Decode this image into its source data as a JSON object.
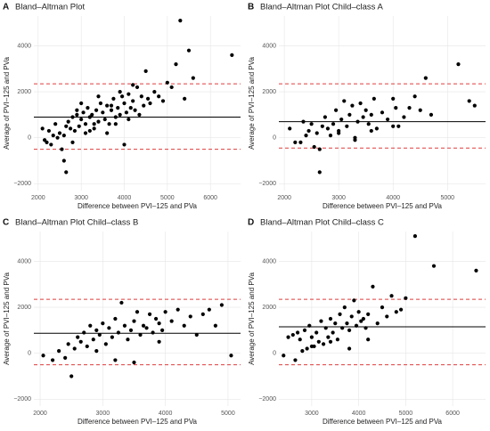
{
  "chart_data": [
    {
      "type": "scatter",
      "panel": "A",
      "title": "Bland–Altman Plot",
      "x_label": "Difference between PVI–125 and PVa",
      "y_label": "Average of PVI–125 and PVa",
      "color": "#000000",
      "x": [
        2100,
        2150,
        2200,
        2250,
        2300,
        2350,
        2400,
        2450,
        2500,
        2550,
        2600,
        2650,
        2700,
        2750,
        2800,
        2850,
        2900,
        2950,
        3000,
        3050,
        3100,
        3150,
        3200,
        3250,
        3300,
        3350,
        3400,
        3450,
        3500,
        3550,
        3600,
        3650,
        3700,
        3750,
        3800,
        3850,
        3900,
        3950,
        4000,
        4050,
        4100,
        4150,
        4200,
        4250,
        4300,
        4350,
        4400,
        4450,
        4500,
        4550,
        4600,
        4700,
        4800,
        4900,
        5000,
        5100,
        5200,
        5300,
        5400,
        5500,
        5600,
        6500,
        2600,
        2650,
        2800,
        3000,
        3200,
        3400,
        3600,
        3800,
        4000,
        4200,
        2900,
        3100,
        3300,
        3700,
        3900,
        4100
      ],
      "y": [
        400,
        -100,
        -200,
        300,
        -300,
        100,
        600,
        0,
        200,
        -500,
        -1000,
        -1500,
        700,
        400,
        900,
        300,
        1200,
        500,
        800,
        1100,
        600,
        1300,
        900,
        1000,
        400,
        1200,
        700,
        1500,
        1100,
        800,
        1400,
        600,
        1200,
        1700,
        900,
        1300,
        1000,
        1800,
        1500,
        1100,
        1900,
        1300,
        1600,
        1200,
        2200,
        1000,
        1800,
        1400,
        2900,
        1700,
        1500,
        2000,
        1800,
        1600,
        2400,
        2200,
        3200,
        5100,
        1700,
        3800,
        2600,
        3600,
        100,
        500,
        -200,
        1500,
        300,
        1800,
        200,
        600,
        -300,
        2300,
        1000,
        200,
        600,
        1400,
        2000,
        800
      ],
      "hlines": [
        {
          "value": 900,
          "color": "#000000",
          "style": "solid"
        },
        {
          "value": 2350,
          "color": "#e03c3c",
          "style": "dashed"
        },
        {
          "value": -500,
          "color": "#e03c3c",
          "style": "dashed"
        }
      ],
      "xlim": [
        1900,
        6700
      ],
      "ylim": [
        -2300,
        5300
      ],
      "xticks": [
        2000,
        3000,
        4000,
        5000,
        6000
      ],
      "yticks": [
        {
          "value": -2000,
          "label": "−2000"
        },
        0,
        2000,
        4000
      ],
      "grid": true
    },
    {
      "type": "scatter",
      "panel": "B",
      "title": "Bland–Altman Plot Child–class A",
      "x_label": "Difference between PVI–125 and PVa",
      "y_label": "Average of PVI–125 and PVa",
      "color": "#000000",
      "x": [
        2100,
        2200,
        2300,
        2350,
        2400,
        2450,
        2500,
        2550,
        2600,
        2650,
        2700,
        2750,
        2800,
        2850,
        2900,
        2950,
        3000,
        3050,
        3100,
        3150,
        3200,
        3250,
        3300,
        3350,
        3400,
        3450,
        3500,
        3550,
        3600,
        3650,
        3700,
        3800,
        3900,
        4000,
        4050,
        4100,
        4200,
        4300,
        4400,
        4500,
        4600,
        4700,
        5200,
        5400,
        5500,
        2650,
        3000,
        3300,
        3600,
        4000
      ],
      "y": [
        400,
        -200,
        -200,
        700,
        100,
        300,
        600,
        -400,
        200,
        -1500,
        500,
        900,
        400,
        100,
        600,
        1200,
        300,
        800,
        1600,
        500,
        1000,
        1400,
        -100,
        700,
        1500,
        900,
        1200,
        600,
        1000,
        1700,
        400,
        1100,
        800,
        1700,
        1300,
        500,
        900,
        1300,
        1800,
        1200,
        2600,
        1000,
        3200,
        1600,
        1400,
        -500,
        200,
        0,
        300,
        500
      ],
      "hlines": [
        {
          "value": 700,
          "color": "#000000",
          "style": "solid"
        },
        {
          "value": 2350,
          "color": "#e03c3c",
          "style": "dashed"
        },
        {
          "value": -450,
          "color": "#e03c3c",
          "style": "dashed"
        }
      ],
      "xlim": [
        1900,
        5700
      ],
      "ylim": [
        -2300,
        5300
      ],
      "xticks": [
        2000,
        3000,
        4000,
        5000
      ],
      "yticks": [
        {
          "value": -2000,
          "label": "−2000"
        },
        0,
        2000,
        4000
      ],
      "grid": true
    },
    {
      "type": "scatter",
      "panel": "C",
      "title": "Bland–Altman Plot Child–class B",
      "x_label": "Difference between PVI–125 and PVa",
      "y_label": "Average of PVI–125 and PVa",
      "color": "#000000",
      "x": [
        2050,
        2200,
        2300,
        2400,
        2450,
        2500,
        2550,
        2600,
        2650,
        2700,
        2750,
        2800,
        2850,
        2900,
        2950,
        3000,
        3050,
        3100,
        3150,
        3200,
        3250,
        3300,
        3350,
        3400,
        3450,
        3500,
        3550,
        3600,
        3650,
        3700,
        3750,
        3800,
        3850,
        3900,
        3950,
        4000,
        4100,
        4200,
        4300,
        4400,
        4500,
        4600,
        4700,
        4800,
        4900,
        5050,
        2900,
        3200,
        3500,
        3900
      ],
      "y": [
        -100,
        -300,
        100,
        -200,
        400,
        -1000,
        200,
        700,
        500,
        900,
        300,
        1200,
        600,
        1000,
        800,
        1300,
        400,
        1100,
        700,
        1500,
        900,
        2200,
        1200,
        600,
        1000,
        1400,
        1800,
        800,
        1200,
        1100,
        1700,
        900,
        1500,
        1300,
        1000,
        1800,
        1400,
        1900,
        1200,
        1600,
        800,
        1700,
        1900,
        1200,
        2100,
        -100,
        100,
        -300,
        -400,
        500
      ],
      "hlines": [
        {
          "value": 870,
          "color": "#000000",
          "style": "solid"
        },
        {
          "value": 2350,
          "color": "#e03c3c",
          "style": "dashed"
        },
        {
          "value": -500,
          "color": "#e03c3c",
          "style": "dashed"
        }
      ],
      "xlim": [
        1900,
        5200
      ],
      "ylim": [
        -2300,
        5300
      ],
      "xticks": [
        2000,
        3000,
        4000,
        5000
      ],
      "yticks": [
        {
          "value": -2000,
          "label": "−2000"
        },
        0,
        2000,
        4000
      ],
      "grid": true
    },
    {
      "type": "scatter",
      "panel": "D",
      "title": "Bland–Altman Plot Child–class C",
      "x_label": "Difference between PVI–125 and PVa",
      "y_label": "Average of PVI–125 and PVa",
      "color": "#000000",
      "x": [
        2400,
        2500,
        2600,
        2650,
        2700,
        2750,
        2800,
        2850,
        2900,
        2950,
        3000,
        3050,
        3100,
        3150,
        3200,
        3250,
        3300,
        3350,
        3400,
        3450,
        3500,
        3550,
        3600,
        3650,
        3700,
        3750,
        3800,
        3850,
        3900,
        3950,
        4000,
        4050,
        4100,
        4150,
        4200,
        4300,
        4400,
        4500,
        4600,
        4700,
        4800,
        4900,
        5000,
        5200,
        5600,
        6500,
        3000,
        3400,
        3800,
        4200
      ],
      "y": [
        -100,
        700,
        800,
        -300,
        900,
        600,
        100,
        1000,
        200,
        1200,
        700,
        300,
        900,
        500,
        1400,
        400,
        1100,
        700,
        1500,
        900,
        1300,
        600,
        1700,
        1100,
        2000,
        1300,
        1000,
        1600,
        2300,
        1200,
        1800,
        1400,
        1500,
        1100,
        1700,
        2900,
        1300,
        2000,
        1600,
        2500,
        1800,
        1900,
        2400,
        5100,
        3800,
        3600,
        300,
        500,
        200,
        600
      ],
      "hlines": [
        {
          "value": 1150,
          "color": "#000000",
          "style": "solid"
        },
        {
          "value": 2350,
          "color": "#e03c3c",
          "style": "dashed"
        },
        {
          "value": -500,
          "color": "#e03c3c",
          "style": "dashed"
        }
      ],
      "xlim": [
        2300,
        6700
      ],
      "ylim": [
        -2300,
        5300
      ],
      "xticks": [
        3000,
        4000,
        5000,
        6000
      ],
      "yticks": [
        {
          "value": -2000,
          "label": "−2000"
        },
        0,
        2000,
        4000
      ],
      "grid": true
    }
  ]
}
